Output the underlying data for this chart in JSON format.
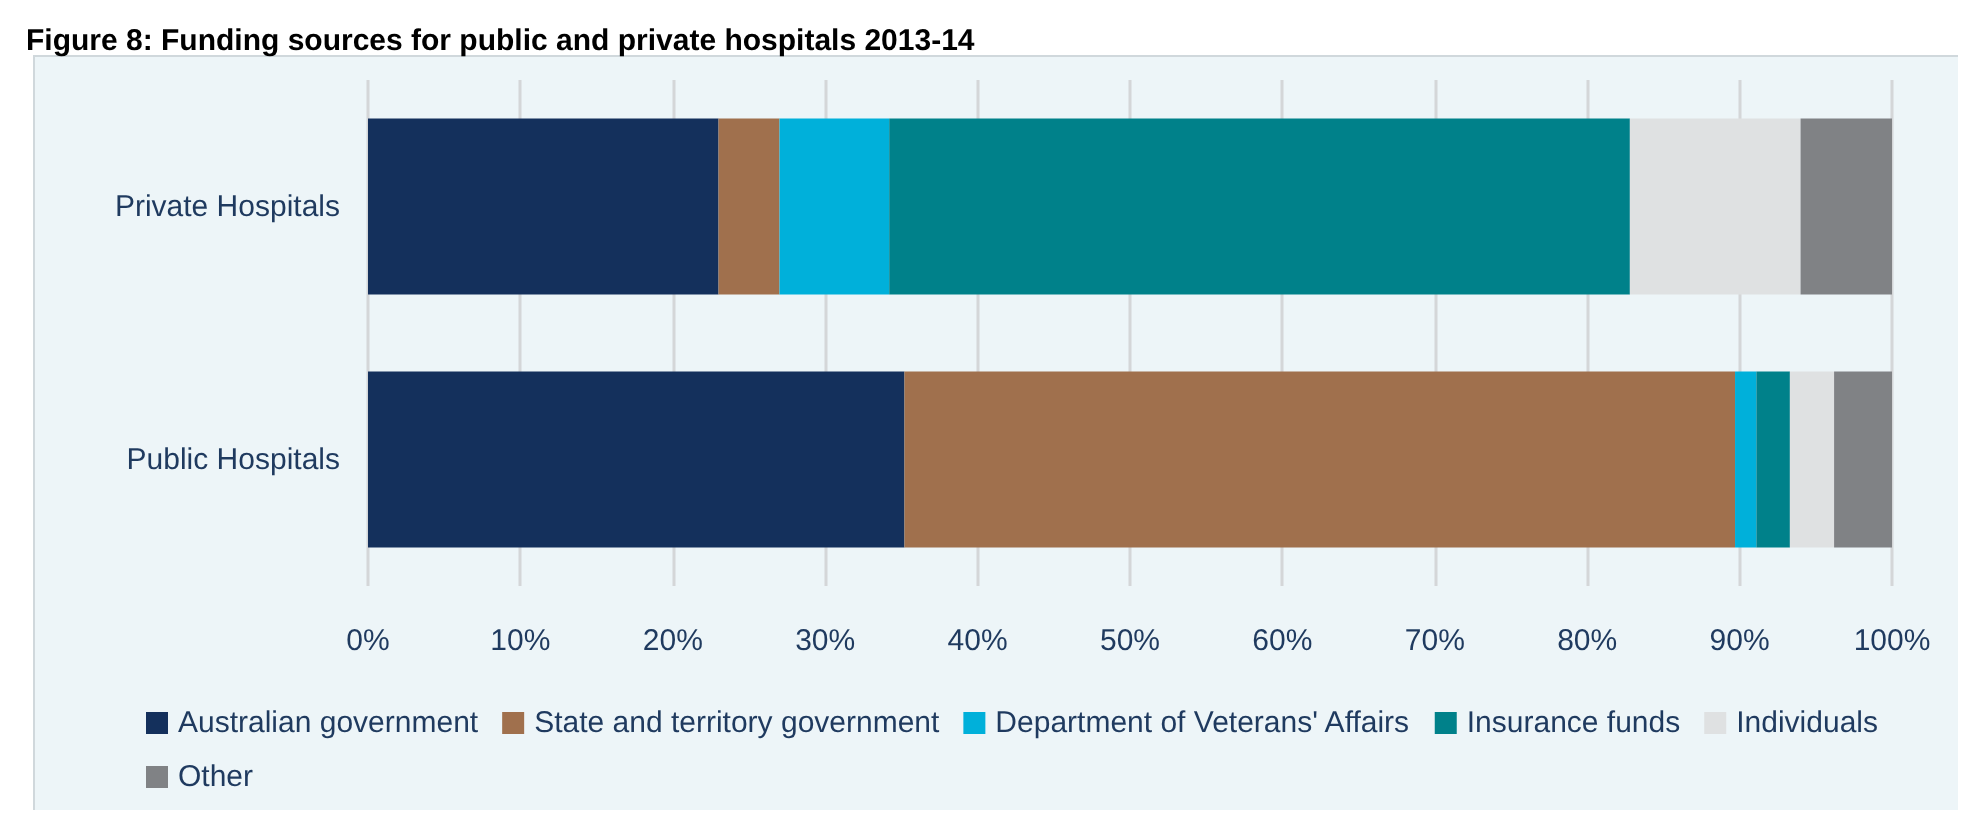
{
  "chart_data": {
    "type": "bar",
    "orientation": "horizontal",
    "stacked": true,
    "title": "Figure 8: Funding sources for public and private hospitals 2013-14",
    "categories": [
      "Private Hospitals",
      "Public Hospitals"
    ],
    "series": [
      {
        "name": "Australian government",
        "color": "#14305c",
        "values": [
          23.0,
          35.2
        ]
      },
      {
        "name": "State and territory government",
        "color": "#a0704d",
        "values": [
          4.0,
          54.5
        ]
      },
      {
        "name": "Department of Veterans' Affairs",
        "color": "#00b0da",
        "values": [
          7.2,
          1.4
        ]
      },
      {
        "name": "Insurance funds",
        "color": "#00818a",
        "values": [
          48.6,
          2.2
        ]
      },
      {
        "name": "Individuals",
        "color": "#dfe1e2",
        "values": [
          11.2,
          2.9
        ]
      },
      {
        "name": "Other",
        "color": "#808285",
        "values": [
          6.0,
          3.8
        ]
      }
    ],
    "xlim": [
      0,
      100
    ],
    "xticks": [
      {
        "value": 0,
        "label": "0%"
      },
      {
        "value": 10,
        "label": "10%"
      },
      {
        "value": 20,
        "label": "20%"
      },
      {
        "value": 30,
        "label": "30%"
      },
      {
        "value": 40,
        "label": "40%"
      },
      {
        "value": 50,
        "label": "50%"
      },
      {
        "value": 60,
        "label": "60%"
      },
      {
        "value": 70,
        "label": "70%"
      },
      {
        "value": 80,
        "label": "80%"
      },
      {
        "value": 90,
        "label": "90%"
      },
      {
        "value": 100,
        "label": "100%"
      }
    ],
    "grid": "x",
    "legend": "bottom"
  }
}
